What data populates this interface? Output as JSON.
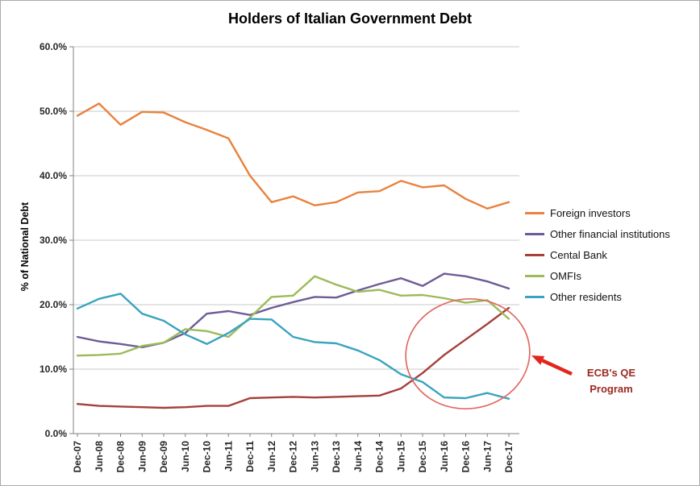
{
  "chart_data": {
    "type": "line",
    "title": "Holders of Italian Government Debt",
    "ylabel": "% of National Debt",
    "xlabel": "",
    "ylim": [
      0,
      60
    ],
    "ytick_step": 10,
    "ytick_labels": [
      "0.0%",
      "10.0%",
      "20.0%",
      "30.0%",
      "40.0%",
      "50.0%",
      "60.0%"
    ],
    "grid": true,
    "legend_position": "right",
    "categories": [
      "Dec-07",
      "Jun-08",
      "Dec-08",
      "Jun-09",
      "Dec-09",
      "Jun-10",
      "Dec-10",
      "Jun-11",
      "Dec-11",
      "Jun-12",
      "Dec-12",
      "Jun-13",
      "Dec-13",
      "Jun-14",
      "Dec-14",
      "Jun-15",
      "Dec-15",
      "Jun-16",
      "Dec-16",
      "Jun-17",
      "Dec-17"
    ],
    "series": [
      {
        "name": "Foreign investors",
        "color": "#E8823E",
        "values": [
          49.3,
          51.2,
          47.9,
          49.9,
          49.8,
          48.3,
          47.1,
          45.8,
          40.0,
          35.9,
          36.8,
          35.4,
          35.9,
          37.4,
          37.6,
          39.2,
          38.2,
          38.5,
          36.4,
          34.9,
          35.9
        ]
      },
      {
        "name": "Other financial institutions",
        "color": "#6E5C98",
        "values": [
          15.0,
          14.3,
          13.9,
          13.4,
          14.1,
          15.6,
          18.6,
          19.0,
          18.4,
          19.5,
          20.4,
          21.2,
          21.1,
          22.2,
          23.2,
          24.1,
          22.9,
          24.8,
          24.4,
          23.6,
          22.5
        ]
      },
      {
        "name": "Cental Bank",
        "color": "#A5403A",
        "values": [
          4.6,
          4.3,
          4.2,
          4.1,
          4.0,
          4.1,
          4.3,
          4.3,
          5.5,
          5.6,
          5.7,
          5.6,
          5.7,
          5.8,
          5.9,
          7.0,
          9.4,
          12.2,
          14.6,
          17.0,
          19.5
        ]
      },
      {
        "name": "OMFIs",
        "color": "#9BBB59",
        "values": [
          12.1,
          12.2,
          12.4,
          13.6,
          14.1,
          16.2,
          15.9,
          15.0,
          18.0,
          21.2,
          21.4,
          24.4,
          23.1,
          22.0,
          22.3,
          21.4,
          21.5,
          21.0,
          20.3,
          20.7,
          17.8
        ]
      },
      {
        "name": "Other residents",
        "color": "#39A3C0",
        "values": [
          19.4,
          20.9,
          21.7,
          18.6,
          17.5,
          15.4,
          13.9,
          15.6,
          17.8,
          17.7,
          15.0,
          14.2,
          14.0,
          12.9,
          11.4,
          9.2,
          8.0,
          5.6,
          5.5,
          6.3,
          5.4
        ]
      }
    ],
    "annotation": {
      "line1": "ECB's QE",
      "line2": "Program",
      "ellipse_color": "#E06A64",
      "arrow_color": "#E3261D",
      "text_color": "#9C2A21"
    },
    "style": {
      "grid_color": "#C9C9C9",
      "axis_color": "#808080",
      "tick_label_color": "#262626"
    }
  }
}
